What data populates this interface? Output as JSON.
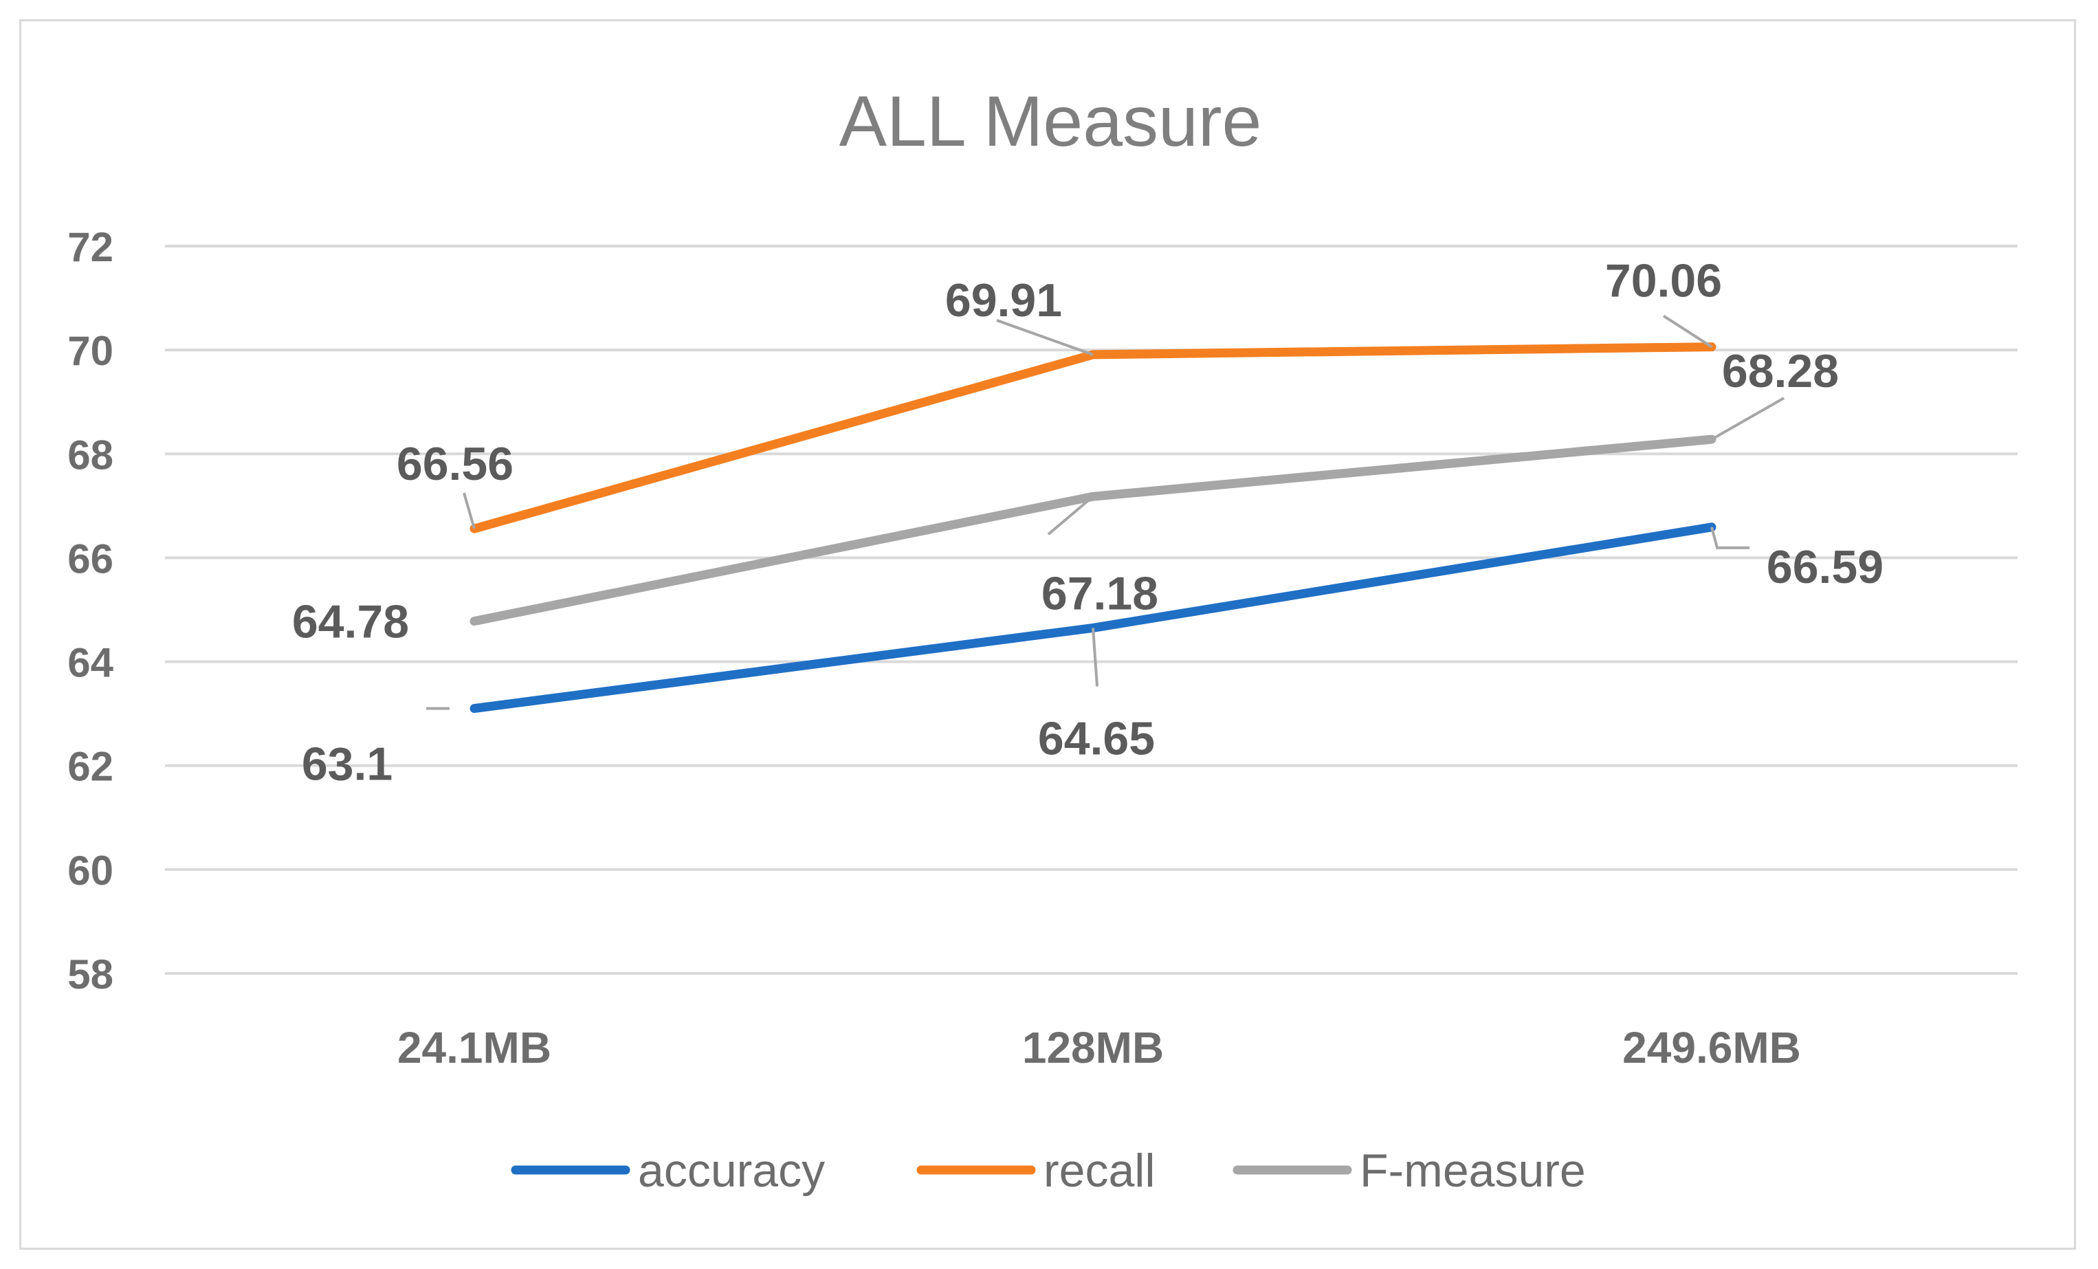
{
  "chart_data": {
    "type": "line",
    "title": "ALL Measure",
    "categories": [
      "24.1MB",
      "128MB",
      "249.6MB"
    ],
    "ylim": [
      58,
      72
    ],
    "yticks": [
      58,
      60,
      62,
      64,
      66,
      68,
      70,
      72
    ],
    "grid": true,
    "legend_position": "bottom",
    "series": [
      {
        "name": "accuracy",
        "color": "#1f6fc5",
        "values": [
          63.1,
          64.65,
          66.59
        ]
      },
      {
        "name": "recall",
        "color": "#f47f20",
        "values": [
          66.56,
          69.91,
          70.06
        ]
      },
      {
        "name": "F-measure",
        "color": "#a6a6a6",
        "values": [
          64.78,
          67.18,
          68.28
        ]
      }
    ]
  }
}
